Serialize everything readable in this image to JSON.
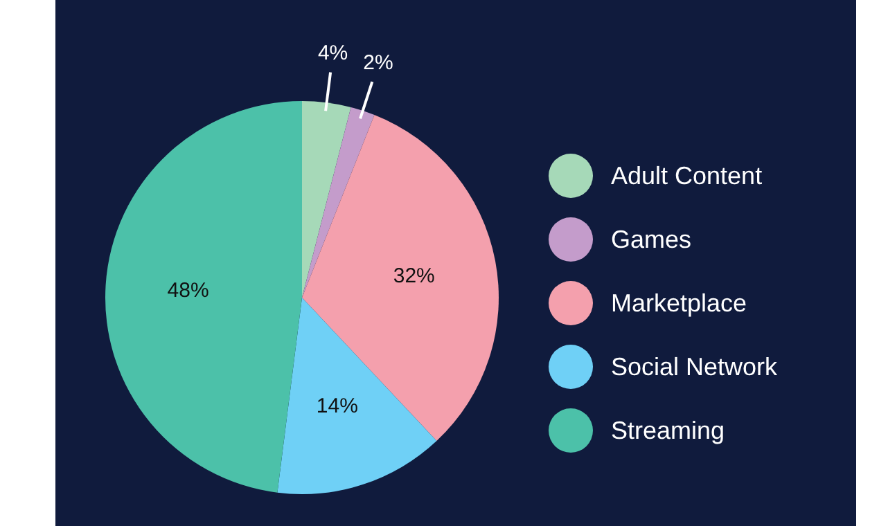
{
  "chart_data": {
    "type": "pie",
    "categories": [
      "Adult Content",
      "Games",
      "Marketplace",
      "Social Network",
      "Streaming"
    ],
    "values": [
      4,
      2,
      32,
      14,
      48
    ],
    "colors": [
      "#a6d9b8",
      "#c49ccb",
      "#f4a0ad",
      "#6fd0f6",
      "#4cc1a9"
    ],
    "value_labels": [
      "4%",
      "2%",
      "32%",
      "14%",
      "48%"
    ],
    "legend": "right"
  }
}
